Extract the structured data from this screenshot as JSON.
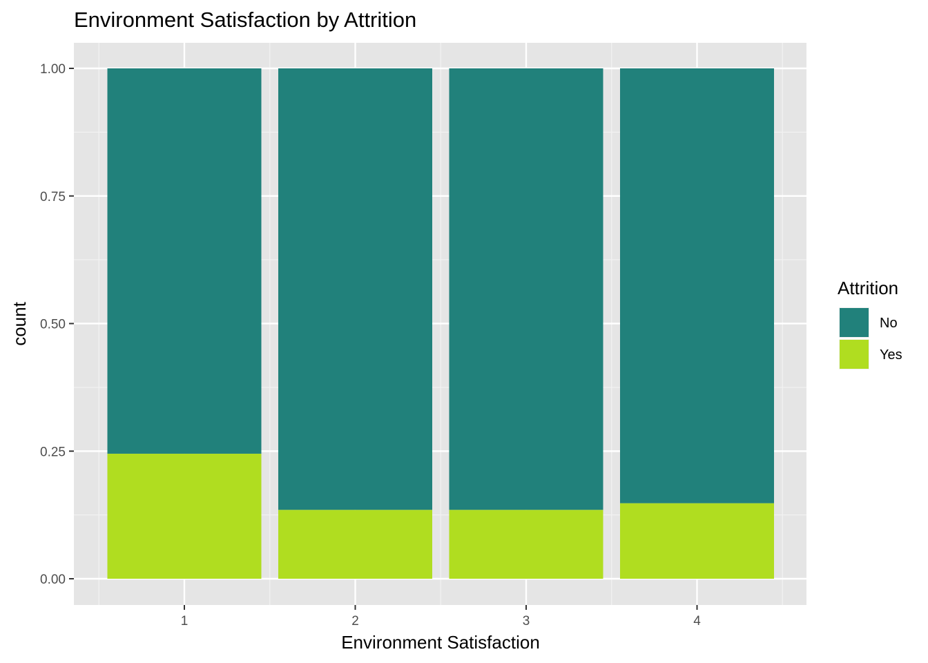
{
  "chart_data": {
    "type": "bar",
    "stacked": "fill",
    "title": "Environment Satisfaction by Attrition",
    "xlabel": "Environment Satisfaction",
    "ylabel": "count",
    "categories": [
      "1",
      "2",
      "3",
      "4"
    ],
    "series": [
      {
        "name": "No",
        "color": "#21817b",
        "values": [
          0.755,
          0.865,
          0.865,
          0.852
        ]
      },
      {
        "name": "Yes",
        "color": "#b0dd20",
        "values": [
          0.245,
          0.135,
          0.135,
          0.148
        ]
      }
    ],
    "ylim": [
      0,
      1
    ],
    "yticks": [
      0,
      0.25,
      0.5,
      0.75,
      1
    ],
    "ytick_labels": [
      "0.00",
      "0.25",
      "0.50",
      "0.75",
      "1.00"
    ],
    "grid": true,
    "panel_background": "#e5e5e5",
    "legend": {
      "title": "Attrition",
      "position": "right",
      "entries": [
        "No",
        "Yes"
      ]
    }
  }
}
